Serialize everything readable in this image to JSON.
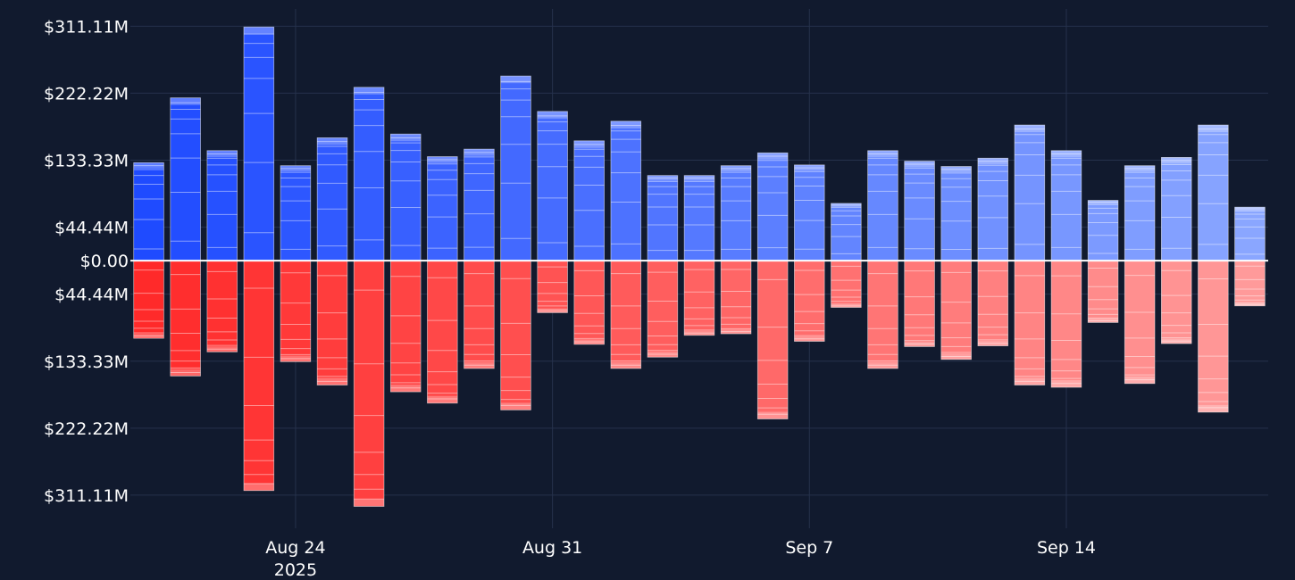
{
  "chart_data": {
    "type": "bar",
    "title": "",
    "xlabel": "",
    "ylabel": "",
    "grid": true,
    "legend": "none",
    "x_ticks": [
      {
        "date": "2025-08-24",
        "label": "Aug 24",
        "sublabel": "2025"
      },
      {
        "date": "2025-08-31",
        "label": "Aug 31",
        "sublabel": ""
      },
      {
        "date": "2025-09-07",
        "label": "Sep 7",
        "sublabel": ""
      },
      {
        "date": "2025-09-14",
        "label": "Sep 14",
        "sublabel": ""
      }
    ],
    "y_ticks": [
      {
        "value": 311.11,
        "label": "$311.11M"
      },
      {
        "value": 222.22,
        "label": "$222.22M"
      },
      {
        "value": 133.33,
        "label": "$133.33M"
      },
      {
        "value": 44.44,
        "label": "$44.44M"
      },
      {
        "value": 0,
        "label": "$0.00"
      },
      {
        "value": -44.44,
        "label": "$44.44M"
      },
      {
        "value": -133.33,
        "label": "$133.33M"
      },
      {
        "value": -222.22,
        "label": "$222.22M"
      },
      {
        "value": -311.11,
        "label": "$311.11M"
      }
    ],
    "ylim": [
      -355,
      334
    ],
    "xlim": [
      "2025-08-19T12:00",
      "2025-09-19T12:00"
    ],
    "units": "USD millions",
    "colors": {
      "inflow_start": "#1f4bff",
      "inflow_end": "#8aa6ff",
      "outflow_start": "#ff2a2a",
      "outflow_end": "#ff9a9a",
      "background": "#111a2e",
      "grid": "#26324c",
      "zero_line": "#ffffff"
    },
    "categories": [
      "2025-08-20",
      "2025-08-21",
      "2025-08-22",
      "2025-08-23",
      "2025-08-24",
      "2025-08-25",
      "2025-08-26",
      "2025-08-27",
      "2025-08-28",
      "2025-08-29",
      "2025-08-30",
      "2025-08-31",
      "2025-09-01",
      "2025-09-02",
      "2025-09-03",
      "2025-09-04",
      "2025-09-05",
      "2025-09-06",
      "2025-09-07",
      "2025-09-08",
      "2025-09-09",
      "2025-09-10",
      "2025-09-11",
      "2025-09-12",
      "2025-09-13",
      "2025-09-14",
      "2025-09-15",
      "2025-09-16",
      "2025-09-17",
      "2025-09-18",
      "2025-09-19"
    ],
    "series": [
      {
        "values": [
          130,
          216,
          146,
          310,
          126,
          163,
          230,
          168,
          138,
          148,
          245,
          198,
          159,
          185,
          113,
          113,
          126,
          143,
          127,
          76,
          146,
          132,
          125,
          136,
          180,
          146,
          80,
          126,
          137,
          180,
          71
        ]
      },
      {
        "values": [
          -103,
          -153,
          -121,
          -305,
          -134,
          -165,
          -326,
          -174,
          -189,
          -143,
          -198,
          -69,
          -111,
          -143,
          -128,
          -99,
          -97,
          -210,
          -107,
          -62,
          -143,
          -114,
          -131,
          -113,
          -165,
          -168,
          -82,
          -163,
          -110,
          -201,
          -60
        ]
      }
    ]
  }
}
